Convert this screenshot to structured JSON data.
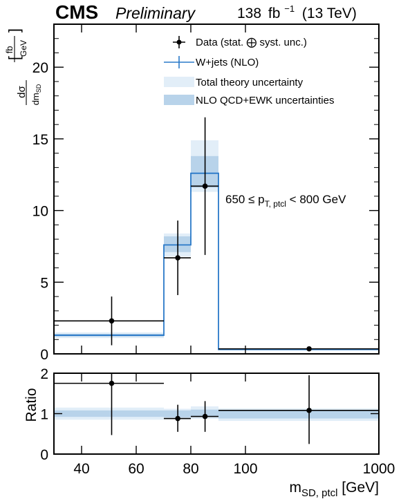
{
  "header": {
    "experiment": "CMS",
    "status": "Preliminary",
    "lumi": "138",
    "lumi_unit": "fb",
    "lumi_exp": "−1",
    "energy": "(13 TeV)"
  },
  "chart_data": [
    {
      "type": "step",
      "panel": "main",
      "ylabel": "dσ/dm_SD [fb/GeV]",
      "ylim": [
        0,
        23
      ],
      "yticks": [
        0,
        5,
        10,
        15,
        20
      ],
      "xscale": "log",
      "xlim": [
        30,
        1000
      ],
      "annotation": "650 ≤ p_T,ptcl < 800 GeV",
      "legend": {
        "position": "top-right",
        "entries": [
          "Data (stat. ⨁ syst. unc.)",
          "W+jets (NLO)",
          "Total theory uncertainty",
          "NLO QCD+EWK uncertainties"
        ]
      },
      "bins": [
        {
          "lo": 30,
          "hi": 70,
          "center": 50,
          "data": 2.3,
          "data_lo": 0.6,
          "data_hi": 4.0,
          "mc": 1.3,
          "theo_lo": 1.1,
          "theo_hi": 1.5,
          "qcd_lo": 1.2,
          "qcd_hi": 1.4
        },
        {
          "lo": 70,
          "hi": 80,
          "center": 75,
          "data": 6.7,
          "data_lo": 4.1,
          "data_hi": 9.3,
          "mc": 7.6,
          "theo_lo": 6.8,
          "theo_hi": 8.4,
          "qcd_lo": 7.1,
          "qcd_hi": 8.2
        },
        {
          "lo": 80,
          "hi": 90,
          "center": 85,
          "data": 11.7,
          "data_lo": 6.9,
          "data_hi": 16.5,
          "mc": 12.6,
          "theo_lo": 11.3,
          "theo_hi": 14.9,
          "qcd_lo": 11.6,
          "qcd_hi": 13.8
        },
        {
          "lo": 90,
          "hi": 1000,
          "center": 300,
          "data": 0.35,
          "data_lo": 0.2,
          "data_hi": 0.5,
          "mc": 0.3,
          "theo_lo": 0.26,
          "theo_hi": 0.34,
          "qcd_lo": 0.28,
          "qcd_hi": 0.32
        }
      ]
    },
    {
      "type": "step",
      "panel": "ratio",
      "ylabel": "Ratio",
      "ylim": [
        0,
        2
      ],
      "yticks": [
        0,
        1,
        2
      ],
      "xlabel": "m_SD, ptcl [GeV]",
      "xscale": "log",
      "xlim": [
        30,
        1000
      ],
      "xticks": [
        40,
        60,
        80,
        100,
        1000
      ],
      "bins": [
        {
          "lo": 30,
          "hi": 70,
          "center": 50,
          "data": 1.75,
          "data_lo": 0.47,
          "data_hi": 2.0,
          "theo_lo": 0.85,
          "theo_hi": 1.15,
          "qcd_lo": 0.92,
          "qcd_hi": 1.08
        },
        {
          "lo": 70,
          "hi": 80,
          "center": 75,
          "data": 0.88,
          "data_lo": 0.55,
          "data_hi": 1.22,
          "theo_lo": 0.86,
          "theo_hi": 1.12,
          "qcd_lo": 0.91,
          "qcd_hi": 1.08
        },
        {
          "lo": 80,
          "hi": 90,
          "center": 85,
          "data": 0.93,
          "data_lo": 0.55,
          "data_hi": 1.31,
          "theo_lo": 0.87,
          "theo_hi": 1.18,
          "qcd_lo": 0.92,
          "qcd_hi": 1.1
        },
        {
          "lo": 90,
          "hi": 1000,
          "center": 300,
          "data": 1.08,
          "data_lo": 0.25,
          "data_hi": 1.95,
          "theo_lo": 0.82,
          "theo_hi": 1.13,
          "qcd_lo": 0.88,
          "qcd_hi": 1.08
        }
      ]
    }
  ],
  "colors": {
    "mc_line": "#2878c8",
    "theory_band": "#e2eef8",
    "qcd_band": "#b8d3ea",
    "data": "#000000"
  }
}
